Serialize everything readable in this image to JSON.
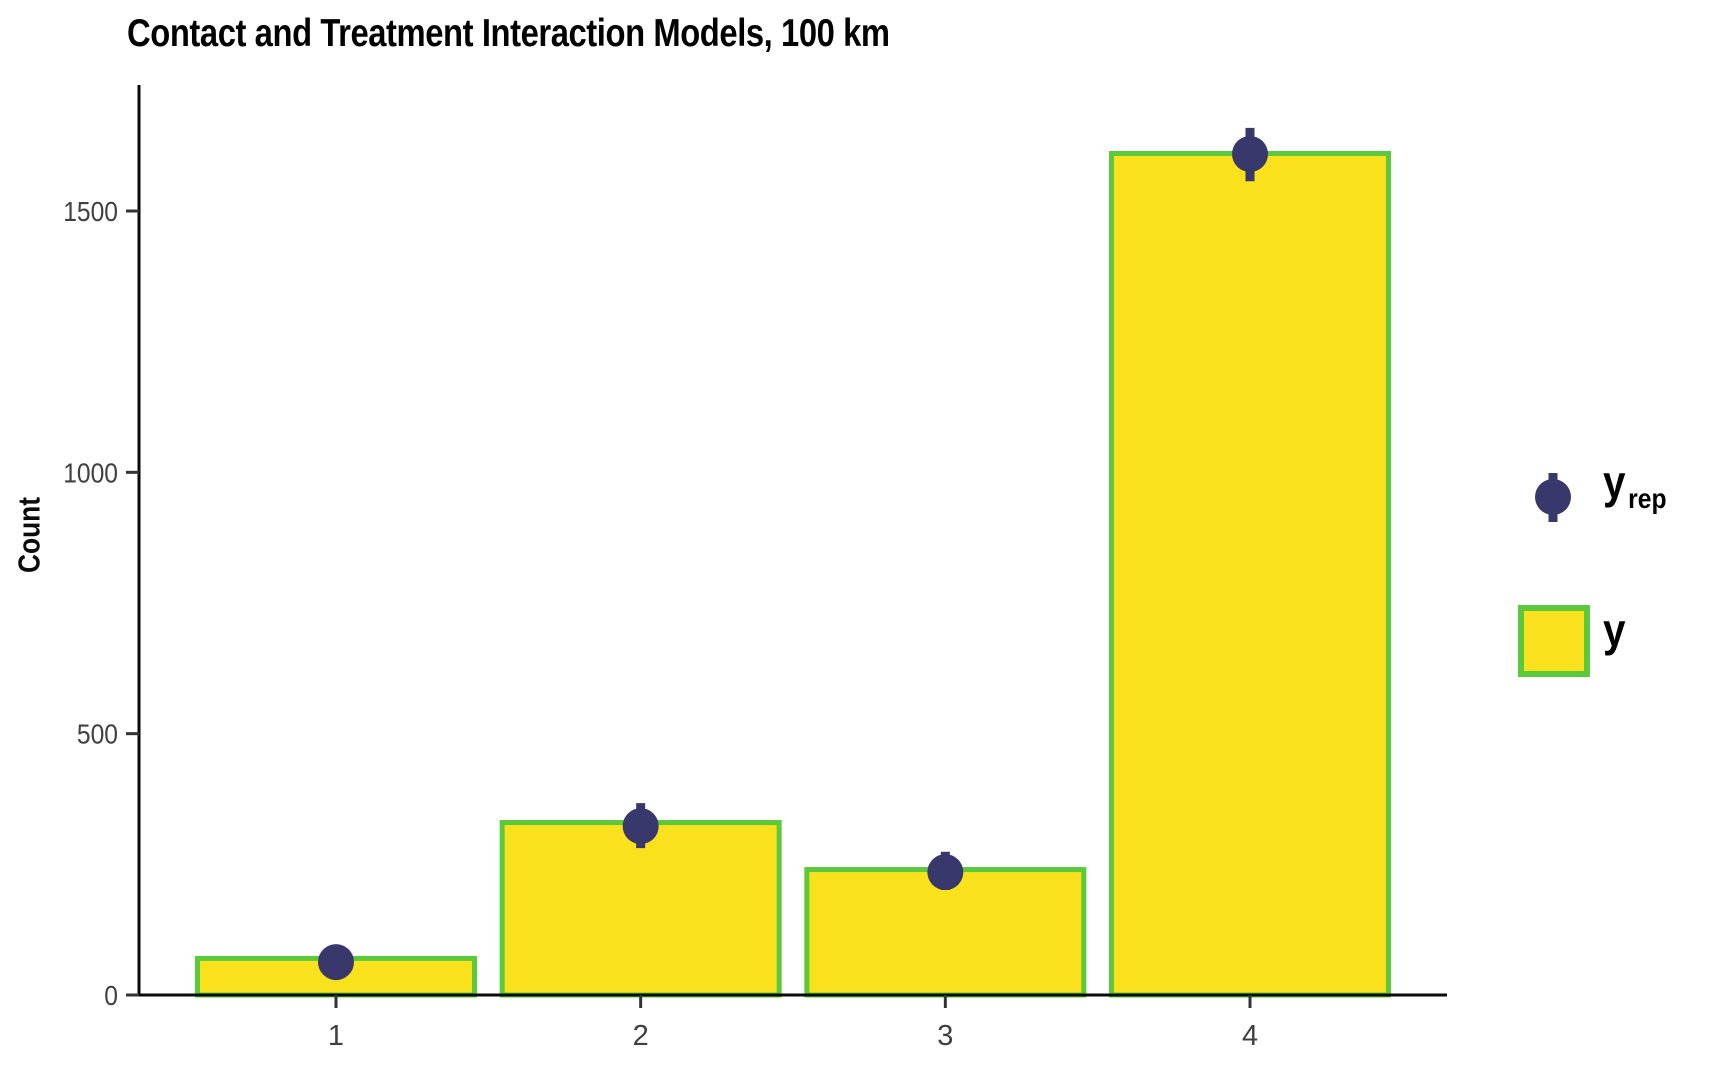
{
  "title": "Contact and Treatment Interaction Models, 100 km",
  "axes": {
    "ylabel": "Count",
    "yticks": [
      0,
      500,
      1000,
      1500
    ],
    "categories": [
      "1",
      "2",
      "3",
      "4"
    ]
  },
  "legend": {
    "items": [
      {
        "label_main": "y",
        "label_sub": "rep",
        "marker": "point-interval-marker"
      },
      {
        "label_main": "y",
        "label_sub": "",
        "marker": "bar-swatch"
      }
    ]
  },
  "colors": {
    "bar_fill": "#F9E11E",
    "bar_stroke": "#5CC83C",
    "point": "#39386C",
    "axis_line": "#0a0a0a",
    "tick_mark": "#333333",
    "tick_label": "#404040",
    "title_text": "#000000"
  },
  "chart_data": {
    "type": "bar",
    "title": "Contact and Treatment Interaction Models, 100 km",
    "xlabel": "",
    "ylabel": "Count",
    "categories": [
      "1",
      "2",
      "3",
      "4"
    ],
    "yticks": [
      0,
      500,
      1000,
      1500
    ],
    "ylim": [
      0,
      1740
    ],
    "grid": false,
    "legend_position": "right",
    "series": [
      {
        "name": "y",
        "type": "bar",
        "values": [
          70,
          330,
          240,
          1610
        ]
      },
      {
        "name": "y_rep",
        "type": "point-interval",
        "values": [
          63,
          323,
          235,
          1609
        ],
        "interval_low": [
          40,
          281,
          201,
          1557
        ],
        "interval_high": [
          85,
          367,
          274,
          1659
        ]
      }
    ]
  }
}
